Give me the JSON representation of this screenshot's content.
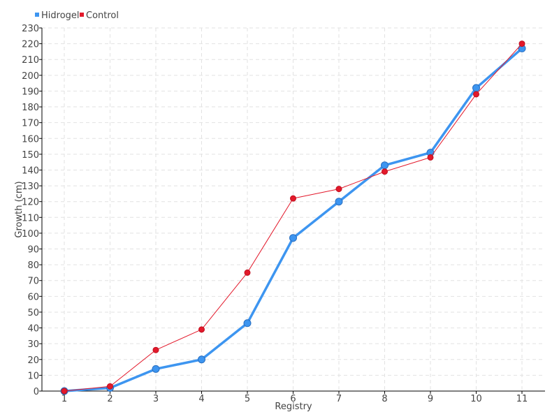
{
  "chart_data": {
    "type": "line",
    "title": "",
    "xlabel": "Registry",
    "ylabel": "Growth (cm)",
    "categories": [
      "1",
      "2",
      "3",
      "4",
      "5",
      "6",
      "7",
      "8",
      "9",
      "10",
      "11"
    ],
    "ylim": [
      0,
      230
    ],
    "yticks": [
      0,
      10,
      20,
      30,
      40,
      50,
      60,
      70,
      80,
      90,
      100,
      110,
      120,
      130,
      140,
      150,
      160,
      170,
      180,
      190,
      200,
      210,
      220,
      230
    ],
    "grid": true,
    "legend_position": "top-left",
    "series": [
      {
        "name": "Hidrogel",
        "color": "#3d95f0",
        "values": [
          0,
          2,
          14,
          20,
          43,
          97,
          120,
          143,
          151,
          192,
          217
        ]
      },
      {
        "name": "Control",
        "color": "#e3192b",
        "values": [
          0,
          3,
          26,
          39,
          75,
          122,
          128,
          139,
          148,
          188,
          220
        ]
      }
    ]
  }
}
